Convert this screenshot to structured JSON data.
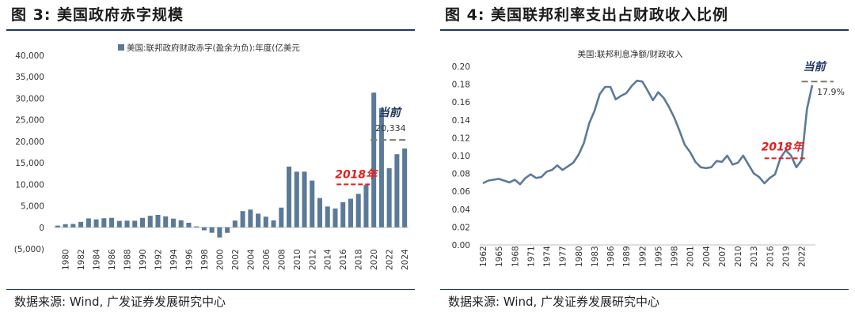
{
  "left_panel": {
    "title": "图 3:  美国政府赤字规模",
    "source": "数据来源:  Wind,  广发证券发展研究中心"
  },
  "right_panel": {
    "title": "图 4:  美国联邦利率支出占财政收入比例",
    "source": "数据来源:  Wind,  广发证券发展研究中心"
  },
  "colors": {
    "bar": "#5b7a98",
    "line": "#5b7a98",
    "red_dash": "#e02020",
    "gray_dash": "#7a7a6a",
    "rule": "#1f3864"
  },
  "chart_data": [
    {
      "type": "bar",
      "legend": "美国:联邦政府财政赤字(盈余为负):年度(亿美元",
      "x": [
        1979,
        1980,
        1981,
        1982,
        1983,
        1984,
        1985,
        1986,
        1987,
        1988,
        1989,
        1990,
        1991,
        1992,
        1993,
        1994,
        1995,
        1996,
        1997,
        1998,
        1999,
        2000,
        2001,
        2002,
        2003,
        2004,
        2005,
        2006,
        2007,
        2008,
        2009,
        2010,
        2011,
        2012,
        2013,
        2014,
        2015,
        2016,
        2017,
        2018,
        2019,
        2020,
        2021,
        2022,
        2023,
        2024
      ],
      "x_tick_labels": [
        "1980",
        "1982",
        "1984",
        "1986",
        "1988",
        "1990",
        "1992",
        "1994",
        "1996",
        "1998",
        "2000",
        "2002",
        "2004",
        "2006",
        "2008",
        "2010",
        "2012",
        "2014",
        "2016",
        "2018",
        "2020",
        "2022",
        "2024"
      ],
      "values": [
        400,
        740,
        790,
        1280,
        2080,
        1850,
        2120,
        2210,
        1500,
        1550,
        1530,
        2210,
        2690,
        2900,
        2550,
        2030,
        1640,
        1070,
        220,
        -690,
        -1260,
        -2360,
        -1280,
        1580,
        3780,
        4130,
        3180,
        2480,
        1610,
        4590,
        14130,
        12940,
        12950,
        10870,
        6800,
        4850,
        4380,
        5850,
        6650,
        7790,
        9840,
        31320,
        27750,
        13760,
        17010,
        18330
      ],
      "y_tick_labels": [
        "40,000",
        "35,000",
        "30,000",
        "25,000",
        "20,000",
        "15,000",
        "10,000",
        "5,000",
        "0",
        "(5,000)"
      ],
      "ylim": [
        -5000,
        40000
      ],
      "annotations": {
        "label_2018": "2018年",
        "label_now": "当前",
        "now_value": "20,334",
        "level_2018": 10000,
        "level_now": 20334
      }
    },
    {
      "type": "line",
      "series_name": "美国:联邦利息净额/财政收入",
      "x": [
        1962,
        1963,
        1964,
        1965,
        1966,
        1967,
        1968,
        1969,
        1970,
        1971,
        1972,
        1973,
        1974,
        1975,
        1976,
        1977,
        1978,
        1979,
        1980,
        1981,
        1982,
        1983,
        1984,
        1985,
        1986,
        1987,
        1988,
        1989,
        1990,
        1991,
        1992,
        1993,
        1994,
        1995,
        1996,
        1997,
        1998,
        1999,
        2000,
        2001,
        2002,
        2003,
        2004,
        2005,
        2006,
        2007,
        2008,
        2009,
        2010,
        2011,
        2012,
        2013,
        2014,
        2015,
        2016,
        2017,
        2018,
        2019,
        2020,
        2021,
        2022,
        2023,
        2024
      ],
      "values": [
        0.069,
        0.072,
        0.073,
        0.074,
        0.072,
        0.07,
        0.073,
        0.068,
        0.075,
        0.079,
        0.075,
        0.076,
        0.082,
        0.084,
        0.089,
        0.084,
        0.088,
        0.092,
        0.101,
        0.114,
        0.136,
        0.15,
        0.169,
        0.177,
        0.177,
        0.163,
        0.167,
        0.17,
        0.178,
        0.184,
        0.183,
        0.173,
        0.162,
        0.171,
        0.165,
        0.155,
        0.143,
        0.128,
        0.112,
        0.104,
        0.093,
        0.087,
        0.086,
        0.087,
        0.094,
        0.093,
        0.1,
        0.09,
        0.092,
        0.1,
        0.09,
        0.08,
        0.076,
        0.069,
        0.075,
        0.079,
        0.097,
        0.106,
        0.1,
        0.087,
        0.095,
        0.152,
        0.179
      ],
      "x_tick_labels": [
        "1962",
        "1965",
        "1968",
        "1971",
        "1974",
        "1977",
        "1980",
        "1983",
        "1986",
        "1989",
        "1992",
        "1995",
        "1998",
        "2001",
        "2004",
        "2007",
        "2010",
        "2013",
        "2016",
        "2019",
        "2022"
      ],
      "y_tick_labels": [
        "0.20",
        "0.18",
        "0.16",
        "0.14",
        "0.12",
        "0.10",
        "0.08",
        "0.06",
        "0.04",
        "0.02",
        "0.00"
      ],
      "ylim": [
        0,
        0.2
      ],
      "annotations": {
        "label_2018": "2018年",
        "label_now": "当前",
        "now_value": "17.9%",
        "level_2018": 0.097,
        "level_now": 0.179
      }
    }
  ]
}
